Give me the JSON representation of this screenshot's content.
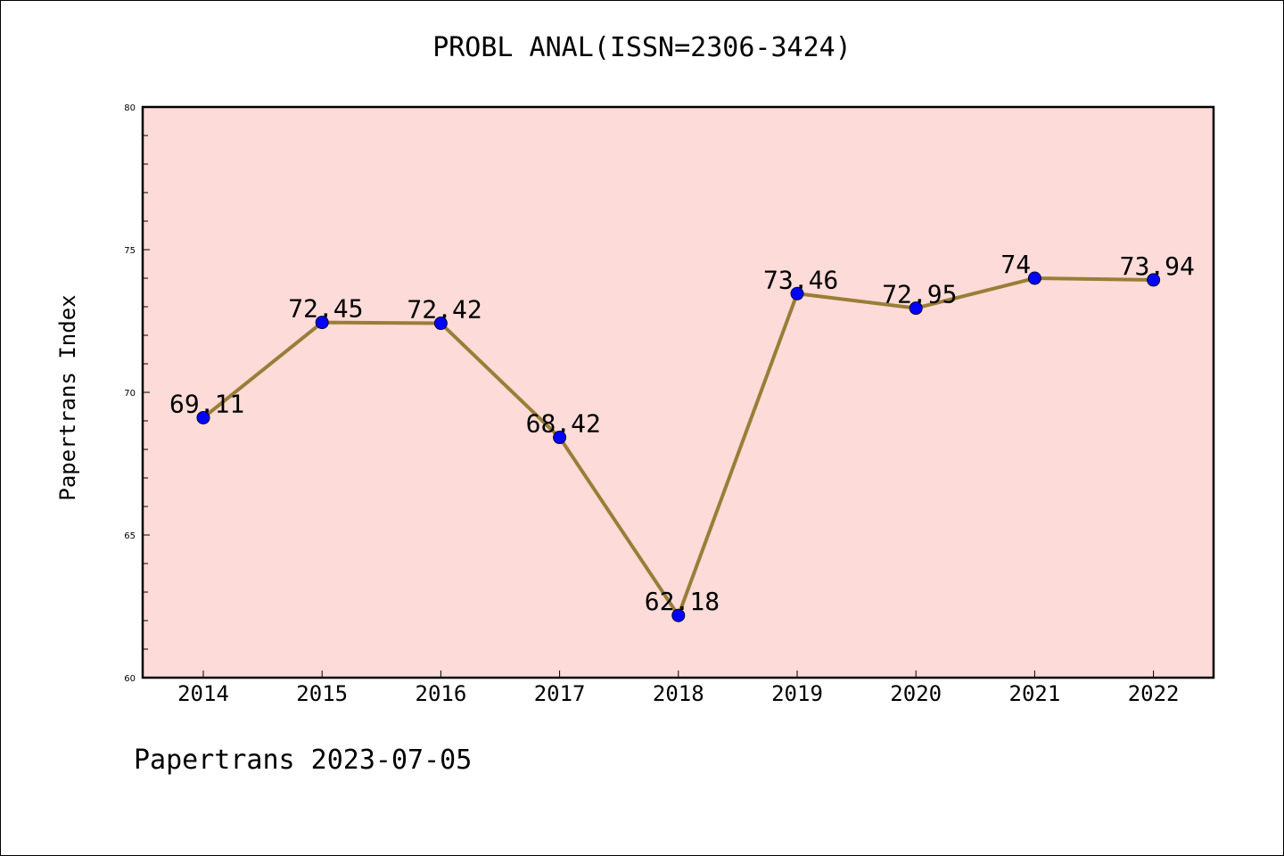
{
  "colors": {
    "plot_background": "#fddbd8",
    "line": "#9a7d37",
    "marker": "#0000ff",
    "axis": "#000000"
  },
  "chart_data": {
    "type": "line",
    "title": "PROBL ANAL(ISSN=2306-3424)",
    "xlabel": "",
    "ylabel": "Papertrans Index",
    "categories": [
      "2014",
      "2015",
      "2016",
      "2017",
      "2018",
      "2019",
      "2020",
      "2021",
      "2022"
    ],
    "series": [
      {
        "values": [
          69.11,
          72.45,
          72.42,
          68.42,
          62.18,
          73.46,
          72.95,
          74,
          73.94
        ],
        "labels": [
          "69.11",
          "72.45",
          "72.42",
          "68.42",
          "62.18",
          "73.46",
          "72.95",
          "74",
          "73.94"
        ]
      }
    ],
    "ylim": [
      60,
      80
    ],
    "yticks": [
      "60",
      "65",
      "70",
      "75",
      "80"
    ],
    "grid": false,
    "legend": "none"
  },
  "footer": "Papertrans 2023-07-05"
}
